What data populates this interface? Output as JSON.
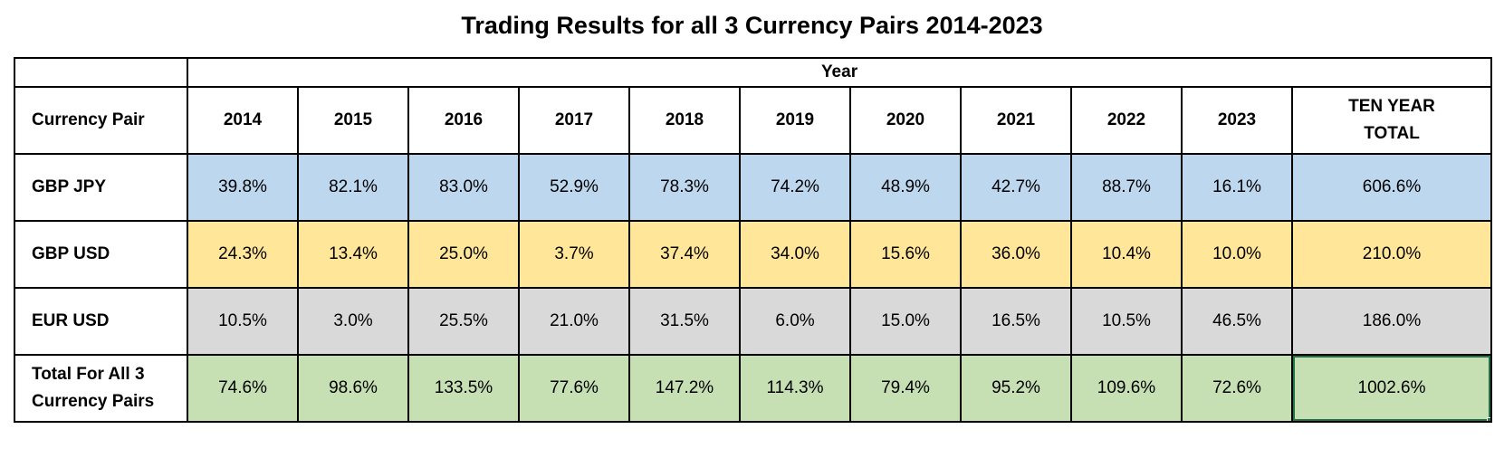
{
  "chart_data": {
    "type": "table",
    "title": "Trading Results for all 3 Currency Pairs 2014-2023",
    "group_header": "Year",
    "row_header": "Currency Pair",
    "columns": [
      "2014",
      "2015",
      "2016",
      "2017",
      "2018",
      "2019",
      "2020",
      "2021",
      "2022",
      "2023",
      "TEN YEAR TOTAL"
    ],
    "rows": [
      {
        "label": "GBP JPY",
        "color": "#bdd7ee",
        "values": [
          "39.8%",
          "82.1%",
          "83.0%",
          "52.9%",
          "78.3%",
          "74.2%",
          "48.9%",
          "42.7%",
          "88.7%",
          "16.1%",
          "606.6%"
        ]
      },
      {
        "label": "GBP USD",
        "color": "#ffe699",
        "values": [
          "24.3%",
          "13.4%",
          "25.0%",
          "3.7%",
          "37.4%",
          "34.0%",
          "15.6%",
          "36.0%",
          "10.4%",
          "10.0%",
          "210.0%"
        ]
      },
      {
        "label": "EUR USD",
        "color": "#d9d9d9",
        "values": [
          "10.5%",
          "3.0%",
          "25.5%",
          "21.0%",
          "31.5%",
          "6.0%",
          "15.0%",
          "16.5%",
          "10.5%",
          "46.5%",
          "186.0%"
        ]
      },
      {
        "label": "Total For All 3 Currency Pairs",
        "color": "#c6e0b4",
        "values": [
          "74.6%",
          "98.6%",
          "133.5%",
          "77.6%",
          "147.2%",
          "114.3%",
          "79.4%",
          "95.2%",
          "109.6%",
          "72.6%",
          "1002.6%"
        ]
      }
    ]
  }
}
